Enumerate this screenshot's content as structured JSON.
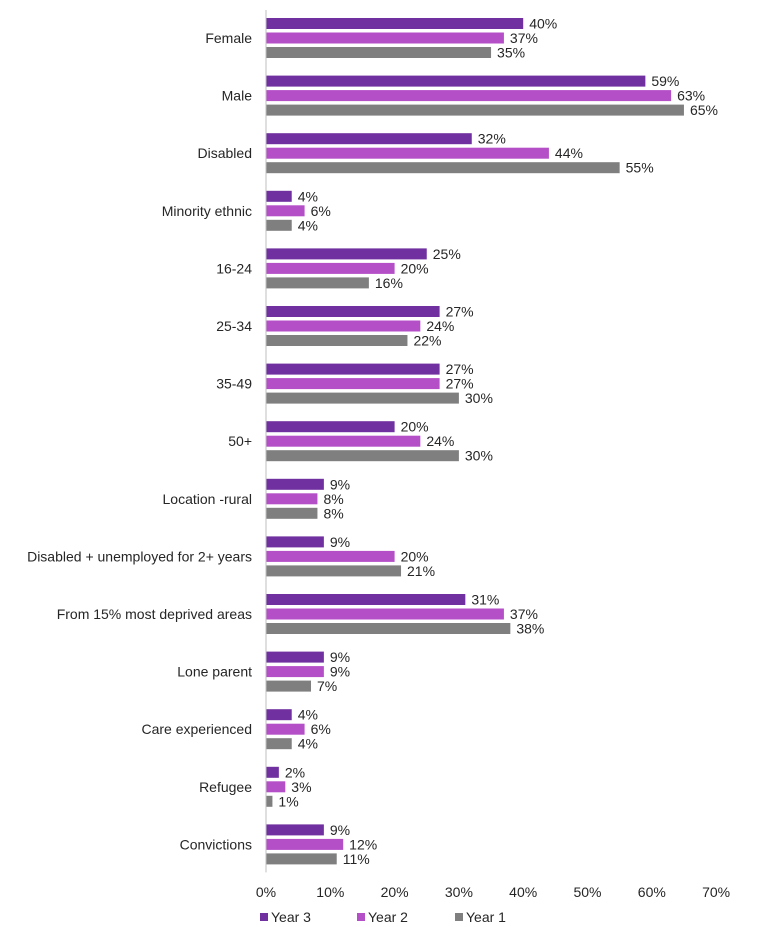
{
  "chart_data": {
    "type": "bar",
    "orientation": "horizontal",
    "categories": [
      "Female",
      "Male",
      "Disabled",
      "Minority ethnic",
      "16-24",
      "25-34",
      "35-49",
      "50+",
      "Location -rural",
      "Disabled + unemployed for 2+ years",
      "From 15% most deprived areas",
      "Lone parent",
      "Care experienced",
      "Refugee",
      "Convictions"
    ],
    "series": [
      {
        "name": "Year 3",
        "color": "#7030a0",
        "values": [
          40,
          59,
          32,
          4,
          25,
          27,
          27,
          20,
          9,
          9,
          31,
          9,
          4,
          2,
          9
        ]
      },
      {
        "name": "Year 2",
        "color": "#b44fc8",
        "values": [
          37,
          63,
          44,
          6,
          20,
          24,
          27,
          24,
          8,
          20,
          37,
          9,
          6,
          3,
          12
        ]
      },
      {
        "name": "Year 1",
        "color": "#7f7f7f",
        "values": [
          35,
          65,
          55,
          4,
          16,
          22,
          30,
          30,
          8,
          21,
          38,
          7,
          4,
          1,
          11
        ]
      }
    ],
    "value_format": "percent",
    "xlim": [
      0,
      70
    ],
    "x_ticks": [
      "0%",
      "10%",
      "20%",
      "30%",
      "40%",
      "50%",
      "60%",
      "70%"
    ],
    "legend": "bottom",
    "grid": false,
    "title": "",
    "xlabel": "",
    "ylabel": ""
  }
}
